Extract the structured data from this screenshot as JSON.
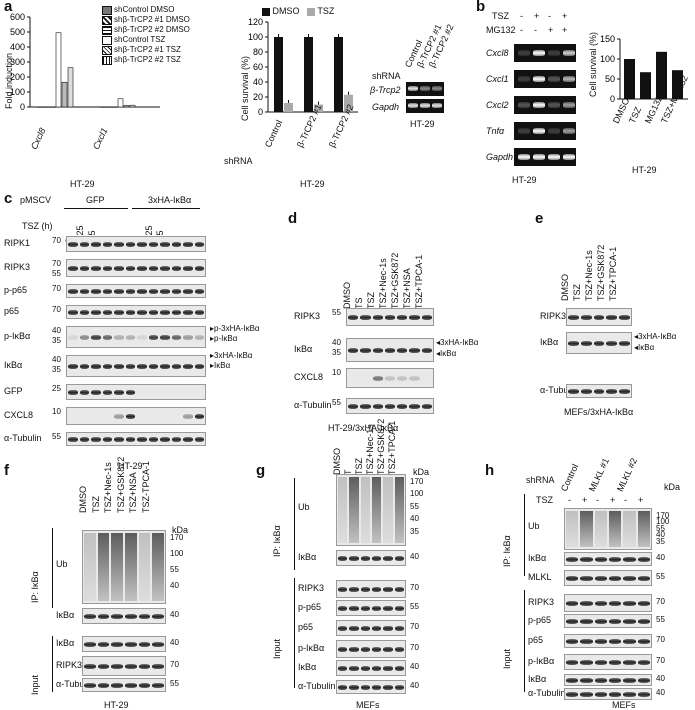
{
  "panel_letters": [
    "a",
    "b",
    "c",
    "d",
    "e",
    "f",
    "g",
    "h"
  ],
  "a1": {
    "chart_data": {
      "type": "bar",
      "ylabel": "Fold induction",
      "ylim": [
        0,
        600
      ],
      "yticks": [
        "0",
        "100",
        "200",
        "300",
        "400",
        "500",
        "600"
      ],
      "categories": [
        "Cxcl8",
        "Cxcl1"
      ],
      "xlabel_under": "HT-29",
      "series": [
        {
          "name": "shControl DMSO",
          "values": [
            1,
            1
          ]
        },
        {
          "name": "shβ-TrCP2 #1 DMSO",
          "values": [
            1,
            1
          ]
        },
        {
          "name": "shβ-TrCP2 #2 DMSO",
          "values": [
            1,
            1
          ]
        },
        {
          "name": "shControl TSZ",
          "values": [
            495,
            55
          ]
        },
        {
          "name": "shβ-TrCP2 #1 TSZ",
          "values": [
            165,
            10
          ]
        },
        {
          "name": "shβ-TrCP2 #2 TSZ",
          "values": [
            262,
            12
          ]
        }
      ]
    }
  },
  "a2": {
    "chart_data": {
      "type": "bar",
      "ylabel": "Cell survival (%)",
      "ylim": [
        0,
        120
      ],
      "yticks": [
        "0",
        "20",
        "40",
        "60",
        "80",
        "100",
        "120"
      ],
      "categories": [
        "Control",
        "β-TrCP2 #1",
        "β-TrCP2 #2"
      ],
      "category_label": "shRNA",
      "xlabel_under": "HT-29",
      "series": [
        {
          "name": "DMSO",
          "values": [
            100,
            100,
            100
          ]
        },
        {
          "name": "TSZ",
          "values": [
            12,
            10,
            23
          ]
        }
      ]
    }
  },
  "a3": {
    "lanes": [
      "Control",
      "β-TrCP2 #1",
      "β-TrCP2 #2"
    ],
    "lane_label": "shRNA",
    "rows": [
      "β-Trcp2",
      "Gapdh"
    ],
    "cell": "HT-29"
  },
  "b1": {
    "rows_label": [
      "TSZ",
      "MG132"
    ],
    "tsz": [
      "-",
      "+",
      "-",
      "+"
    ],
    "mg132": [
      "-",
      "-",
      "+",
      "+"
    ],
    "genes": [
      "Cxcl8",
      "Cxcl1",
      "Cxcl2",
      "Tnfα",
      "Gapdh"
    ],
    "cell": "HT-29"
  },
  "b2": {
    "chart_data": {
      "type": "bar",
      "ylabel": "Cell survival (%)",
      "ylim": [
        0,
        150
      ],
      "yticks": [
        "0",
        "50",
        "100",
        "150"
      ],
      "categories": [
        "DMSO",
        "TSZ",
        "MG132",
        "TSZ+MG132"
      ],
      "xlabel_under": "HT-29",
      "series": [
        {
          "name": "",
          "values": [
            100,
            67,
            118,
            72
          ]
        }
      ]
    }
  },
  "c": {
    "pmscv": "pMSCV",
    "gfp": "GFP",
    "ha": "3xHA-IκBα",
    "tsz_label": "TSZ (h)",
    "times": [
      "0",
      "0.25",
      "0.5",
      "1",
      "4",
      "8",
      "0",
      "0.25",
      "0.5",
      "1",
      "4",
      "8"
    ],
    "rows": [
      "RIPK1",
      "RIPK3",
      "p-p65",
      "p65",
      "p-IκBα",
      "IκBα",
      "GFP",
      "CXCL8",
      "α-Tubulin"
    ],
    "mw": [
      [
        "70"
      ],
      [
        "70",
        "55"
      ],
      [
        "70"
      ],
      [
        "70"
      ],
      [
        "40",
        "35"
      ],
      [
        "40",
        "35"
      ],
      [
        "25"
      ],
      [
        "10"
      ],
      [
        "55"
      ]
    ],
    "arrows_pikba": [
      "p-3xHA-IκBα",
      "p-IκBα"
    ],
    "arrows_ikba": [
      "3xHA-IκBα",
      "IκBα"
    ],
    "cell": "HT-29"
  },
  "d": {
    "lanes": [
      "DMSO",
      "TS",
      "TSZ",
      "TSZ+Nec-1s",
      "TSZ+GSK872",
      "TSZ+NSA",
      "TSZ+TPCA-1"
    ],
    "rows": [
      "RIPK3",
      "IκBα",
      "CXCL8",
      "α-Tubulin"
    ],
    "mw": [
      [
        "55"
      ],
      [
        "40",
        "35"
      ],
      [
        "10"
      ],
      [
        "55"
      ]
    ],
    "arrows": [
      "3xHA-IκBα",
      "IκBα"
    ],
    "cell": "HT-29/3xHA-IκBα"
  },
  "e": {
    "lanes": [
      "DMSO",
      "TSZ",
      "TSZ+Nec-1s",
      "TSZ+GSK872",
      "TSZ+TPCA-1"
    ],
    "rows": [
      "RIPK3",
      "IκBα",
      "α-Tubulin"
    ],
    "mw": [
      [
        "55"
      ],
      [
        "40"
      ],
      [
        "55"
      ]
    ],
    "arrows": [
      "3xHA-IκBα",
      "IκBα"
    ],
    "cell": "MEFs/3xHA-IκBα"
  },
  "f": {
    "lanes": [
      "DMSO",
      "TSZ",
      "TSZ+Nec-1s",
      "TSZ+GSK872",
      "TSZ+NSA",
      "TSZ-TPCA-1"
    ],
    "kda": "kDa",
    "ip": "IP: IκBα",
    "input": "Input",
    "rows": [
      "Ub",
      "IκBα",
      "IκBα",
      "RIPK3",
      "α-Tubulin"
    ],
    "ub_mw": [
      "170",
      "100",
      "55",
      "40"
    ],
    "mw": [
      "40",
      "40",
      "70",
      "55",
      "55"
    ],
    "cell": "HT-29"
  },
  "g": {
    "lanes": [
      "DMSO",
      "T",
      "TSZ",
      "TSZ+Nec-1s",
      "TSZ+GSK872",
      "TSZ+TPCA-1"
    ],
    "kda": "kDa",
    "ip": "IP: IκBα",
    "input": "Input",
    "rows": [
      "Ub",
      "IκBα",
      "RIPK3",
      "p-p65",
      "p65",
      "p-IκBα",
      "IκBα",
      "α-Tubulin"
    ],
    "ub_mw": [
      "170",
      "100",
      "55",
      "40",
      "35"
    ],
    "mw": [
      "40",
      "70",
      "55",
      "70",
      "70",
      "40",
      "40",
      "55"
    ],
    "cell": "MEFs"
  },
  "h": {
    "shrna": "shRNA",
    "groups": [
      "Control",
      "MLKL #1",
      "MLKL #2"
    ],
    "tsz_label": "TSZ",
    "tsz": [
      "-",
      "+",
      "-",
      "+",
      "-",
      "+"
    ],
    "kda": "kDa",
    "ip": "IP: IκBα",
    "input": "Input",
    "rows": [
      "Ub",
      "IκBα",
      "MLKL",
      "RIPK3",
      "p-p65",
      "p65",
      "p-IκBα",
      "IκBα",
      "α-Tubulin"
    ],
    "ub_mw": [
      "170",
      "100",
      "55",
      "40",
      "35"
    ],
    "mw": [
      "40",
      "55",
      "70",
      "55",
      "70",
      "70",
      "40",
      "40",
      "55"
    ],
    "cell": "MEFs"
  }
}
